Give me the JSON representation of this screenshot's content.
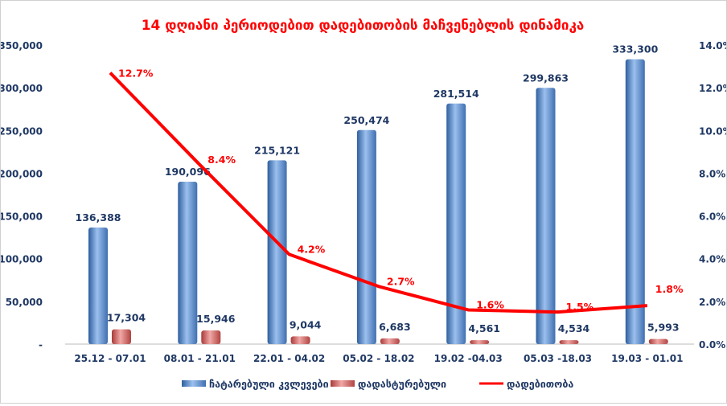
{
  "chart_data": {
    "type": "bar",
    "title": "14 დღიანი პერიოდებით დადებითობის მაჩვენებლის დინამიკა",
    "categories": [
      "25.12 - 07.01",
      "08.01 - 21.01",
      "22.01 - 04.02",
      "05.02 - 18.02",
      "19.02 -04.03",
      "05.03 -18.03",
      "19.03 - 01.01"
    ],
    "series": [
      {
        "name": "ჩატარებული კვლევები",
        "type": "bar",
        "axis": "left",
        "color": "#4f81bd",
        "values": [
          136388,
          190096,
          215121,
          250474,
          281514,
          299863,
          333300
        ],
        "labels": [
          "136,388",
          "190,096",
          "215,121",
          "250,474",
          "281,514",
          "299,863",
          "333,300"
        ]
      },
      {
        "name": "დადასტურებული",
        "type": "bar",
        "axis": "left",
        "color": "#c0504d",
        "values": [
          17304,
          15946,
          9044,
          6683,
          4561,
          4534,
          5993
        ],
        "labels": [
          "17,304",
          "15,946",
          "9,044",
          "6,683",
          "4,561",
          "4,534",
          "5,993"
        ]
      },
      {
        "name": "დადებითობა",
        "type": "line",
        "axis": "right",
        "color": "#ff0000",
        "values": [
          12.7,
          8.4,
          4.2,
          2.7,
          1.6,
          1.5,
          1.8
        ],
        "labels": [
          "12.7%",
          "8.4%",
          "4.2%",
          "2.7%",
          "1.6%",
          "1.5%",
          "1.8%"
        ]
      }
    ],
    "yleft": {
      "ylim": [
        0,
        350000
      ],
      "ticks": [
        "-",
        "50,000",
        "100,000",
        "150,000",
        "200,000",
        "250,000",
        "300,000",
        "350,000"
      ]
    },
    "yright": {
      "ylim": [
        0,
        14
      ],
      "ticks": [
        "0.0%",
        "2.0%",
        "4.0%",
        "6.0%",
        "8.0%",
        "10.0%",
        "12.0%",
        "14.0%"
      ]
    },
    "grid": false,
    "legend": "bottom",
    "title_color": "#ff0000"
  }
}
